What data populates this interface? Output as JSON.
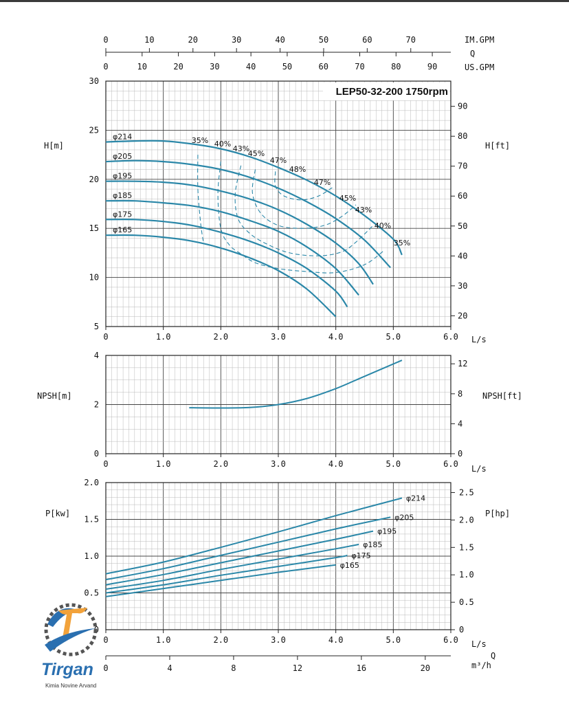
{
  "chart_data": [
    {
      "type": "line",
      "title": "LEP50-32-200 1750rpm",
      "xlabel": "L/s",
      "ylabel": "H[m]",
      "ylabel_right": "H[ft]",
      "xlim": [
        0,
        6.0
      ],
      "ylim": [
        5,
        30
      ],
      "x_ticks": [
        "0",
        "1.0",
        "2.0",
        "3.0",
        "4.0",
        "5.0",
        "6.0"
      ],
      "y_ticks": [
        "5",
        "10",
        "15",
        "20",
        "25",
        "30"
      ],
      "y_ticks_right": [
        "20",
        "30",
        "40",
        "50",
        "60",
        "70",
        "80",
        "90"
      ],
      "top_axes": {
        "im_gpm_label": "IM.GPM",
        "im_gpm_ticks": [
          "0",
          "10",
          "20",
          "30",
          "40",
          "50",
          "60",
          "70"
        ],
        "q_label": "Q",
        "us_gpm_label": "US.GPM",
        "us_gpm_ticks": [
          "0",
          "10",
          "20",
          "30",
          "40",
          "50",
          "60",
          "70",
          "80",
          "90"
        ]
      },
      "series": [
        {
          "name": "φ214",
          "x": [
            0,
            0.5,
            1.0,
            1.5,
            2.0,
            2.5,
            3.0,
            3.5,
            4.0,
            4.5,
            5.0,
            5.15
          ],
          "y": [
            23.8,
            23.9,
            23.9,
            23.6,
            23.1,
            22.3,
            21.2,
            19.9,
            18.3,
            16.3,
            13.9,
            12.3
          ]
        },
        {
          "name": "φ205",
          "x": [
            0,
            0.5,
            1.0,
            1.5,
            2.0,
            2.5,
            3.0,
            3.5,
            4.0,
            4.5,
            4.95
          ],
          "y": [
            21.8,
            21.9,
            21.8,
            21.5,
            21.0,
            20.2,
            19.1,
            17.7,
            16.0,
            13.8,
            11.0
          ]
        },
        {
          "name": "φ195",
          "x": [
            0,
            0.5,
            1.0,
            1.5,
            2.0,
            2.5,
            3.0,
            3.5,
            4.0,
            4.4,
            4.65
          ],
          "y": [
            19.8,
            19.8,
            19.7,
            19.4,
            18.8,
            18.0,
            16.9,
            15.4,
            13.5,
            11.4,
            9.3
          ]
        },
        {
          "name": "φ185",
          "x": [
            0,
            0.5,
            1.0,
            1.5,
            2.0,
            2.5,
            3.0,
            3.5,
            4.0,
            4.4
          ],
          "y": [
            17.8,
            17.8,
            17.6,
            17.3,
            16.7,
            15.8,
            14.7,
            13.1,
            10.9,
            8.2
          ]
        },
        {
          "name": "φ175",
          "x": [
            0,
            0.5,
            1.0,
            1.5,
            2.0,
            2.5,
            3.0,
            3.5,
            4.0,
            4.2
          ],
          "y": [
            15.9,
            15.9,
            15.7,
            15.3,
            14.6,
            13.7,
            12.5,
            10.9,
            8.6,
            7.0
          ]
        },
        {
          "name": "φ165",
          "x": [
            0,
            0.5,
            1.0,
            1.5,
            2.0,
            2.5,
            3.0,
            3.5,
            4.0
          ],
          "y": [
            14.3,
            14.3,
            14.1,
            13.7,
            13.0,
            12.0,
            10.7,
            8.8,
            6.0
          ]
        }
      ],
      "efficiency_labels": [
        "35%",
        "40%",
        "43%",
        "45%",
        "47%",
        "48%",
        "47%",
        "45%",
        "43%",
        "40%",
        "35%"
      ],
      "efficiency_contours": [
        {
          "x": [
            1.6,
            1.6,
            1.65,
            1.7
          ],
          "y": [
            22.5,
            19.0,
            15.5,
            13.5
          ]
        },
        {
          "x": [
            2.0,
            1.95,
            2.0,
            2.15,
            2.35,
            2.6,
            3.0,
            3.5,
            4.0,
            4.5,
            4.85
          ],
          "y": [
            21.8,
            18.5,
            15.0,
            13.3,
            12.4,
            11.5,
            10.9,
            10.6,
            10.5,
            11.3,
            12.8
          ]
        },
        {
          "x": [
            2.35,
            2.25,
            2.3,
            2.5,
            2.8,
            3.2,
            3.7,
            4.1,
            4.35,
            4.65
          ],
          "y": [
            21.4,
            18.5,
            16.0,
            14.5,
            13.4,
            12.5,
            12.2,
            12.6,
            13.6,
            15.3
          ]
        },
        {
          "x": [
            2.6,
            2.55,
            2.7,
            3.0,
            3.4,
            3.8,
            4.1,
            4.35
          ],
          "y": [
            21.0,
            18.6,
            16.5,
            15.3,
            15.0,
            15.3,
            16.2,
            17.4
          ]
        },
        {
          "x": [
            2.95,
            2.95,
            3.1,
            3.4,
            3.7,
            3.95
          ],
          "y": [
            20.8,
            19.3,
            18.3,
            17.9,
            18.3,
            19.2
          ]
        }
      ]
    },
    {
      "type": "line",
      "xlabel": "L/s",
      "ylabel": "NPSH[m]",
      "ylabel_right": "NPSH[ft]",
      "xlim": [
        0,
        6.0
      ],
      "ylim": [
        0,
        4
      ],
      "x_ticks": [
        "0",
        "1.0",
        "2.0",
        "3.0",
        "4.0",
        "5.0",
        "6.0"
      ],
      "y_ticks": [
        "0",
        "2",
        "4"
      ],
      "y_ticks_right": [
        "0",
        "4",
        "8",
        "12"
      ],
      "series": [
        {
          "x": [
            1.45,
            2.0,
            2.5,
            3.0,
            3.5,
            4.0,
            4.5,
            5.15
          ],
          "y": [
            1.87,
            1.86,
            1.88,
            2.0,
            2.25,
            2.65,
            3.15,
            3.8
          ]
        }
      ]
    },
    {
      "type": "line",
      "xlabel": "L/s",
      "xlabel_bottom": "m³/h",
      "q_label": "Q",
      "ylabel": "P[kw]",
      "ylabel_right": "P[hp]",
      "xlim": [
        0,
        6.0
      ],
      "ylim": [
        0,
        2.0
      ],
      "x_ticks": [
        "0",
        "1.0",
        "2.0",
        "3.0",
        "4.0",
        "5.0",
        "6.0"
      ],
      "x_ticks_m3h": [
        "0",
        "4",
        "8",
        "12",
        "16",
        "20"
      ],
      "y_ticks": [
        "0",
        "0.5",
        "1.0",
        "1.5",
        "2.0"
      ],
      "y_ticks_right": [
        "0",
        "0.5",
        "1.0",
        "1.5",
        "2.0",
        "2.5"
      ],
      "series": [
        {
          "name": "φ214",
          "x": [
            0,
            1,
            2,
            3,
            4,
            5.15
          ],
          "y": [
            0.76,
            0.92,
            1.12,
            1.33,
            1.55,
            1.79
          ]
        },
        {
          "name": "φ205",
          "x": [
            0,
            1,
            2,
            3,
            4,
            4.95
          ],
          "y": [
            0.68,
            0.83,
            1.01,
            1.19,
            1.37,
            1.53
          ]
        },
        {
          "name": "φ195",
          "x": [
            0,
            1,
            2,
            3,
            4,
            4.65
          ],
          "y": [
            0.61,
            0.75,
            0.91,
            1.07,
            1.23,
            1.34
          ]
        },
        {
          "name": "φ185",
          "x": [
            0,
            1,
            2,
            3,
            4,
            4.4
          ],
          "y": [
            0.55,
            0.67,
            0.82,
            0.96,
            1.1,
            1.16
          ]
        },
        {
          "name": "φ175",
          "x": [
            0,
            1,
            2,
            3,
            4,
            4.2
          ],
          "y": [
            0.5,
            0.61,
            0.74,
            0.86,
            0.98,
            1.01
          ]
        },
        {
          "name": "φ165",
          "x": [
            0,
            1,
            2,
            3,
            4
          ],
          "y": [
            0.45,
            0.56,
            0.67,
            0.78,
            0.88
          ]
        }
      ]
    }
  ],
  "logo": {
    "name": "Tirgan",
    "subtitle": "Kimia Novine Arvand"
  },
  "colors": {
    "curve": "#2a87a8",
    "grid": "#b8b8b8",
    "axis": "#222222"
  }
}
